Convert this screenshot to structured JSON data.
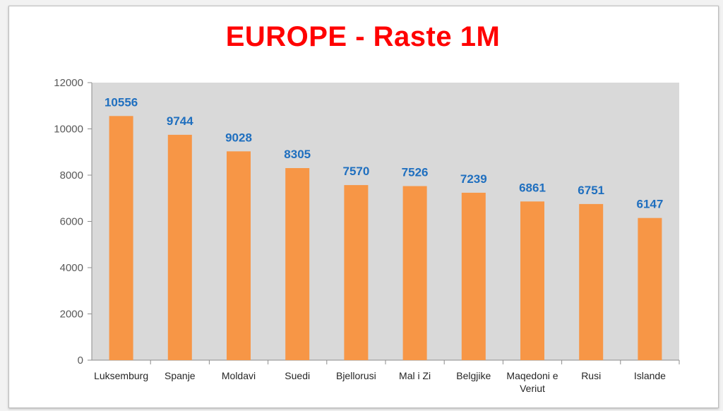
{
  "chart_data": {
    "type": "bar",
    "title": "EUROPE - Raste 1M",
    "categories": [
      "Luksemburg",
      "Spanje",
      "Moldavi",
      "Suedi",
      "Bjellorusi",
      "Mal i Zi",
      "Belgjike",
      "Maqedoni e Veriut",
      "Rusi",
      "Islande"
    ],
    "values": [
      10556,
      9744,
      9028,
      8305,
      7570,
      7526,
      7239,
      6861,
      6751,
      6147
    ],
    "ylim": [
      0,
      12000
    ],
    "yticks": [
      "0",
      "2000",
      "4000",
      "6000",
      "8000",
      "10000",
      "12000"
    ],
    "grid": false,
    "legend": "none",
    "colors": {
      "bar": "#f79646",
      "plot_background": "#d9d9d9",
      "data_label": "#1f6fbf",
      "title": "#ff0000"
    }
  }
}
